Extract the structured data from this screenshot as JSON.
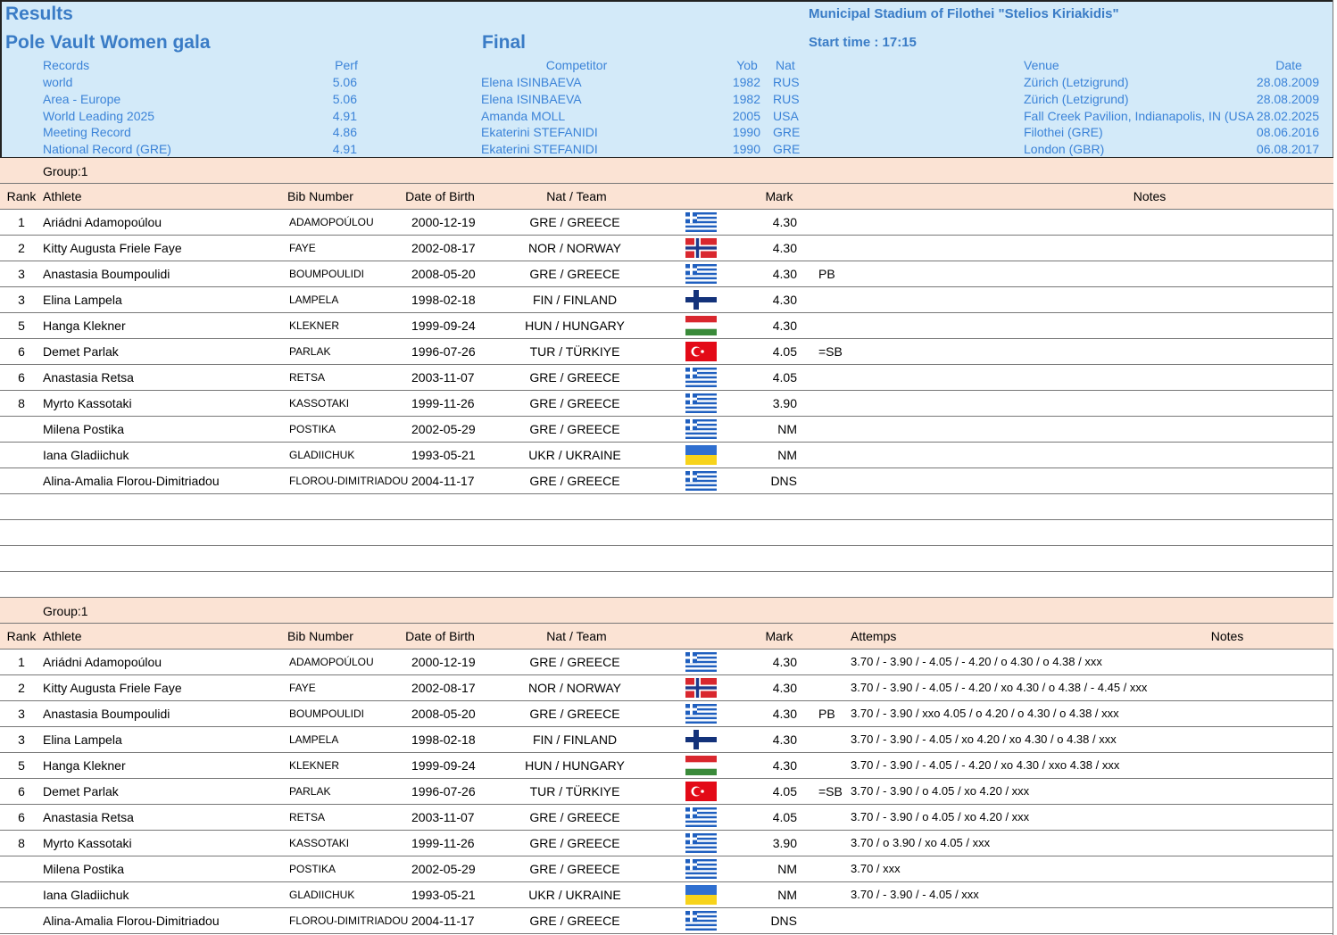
{
  "header": {
    "title": "Results",
    "event": "Pole Vault Women gala",
    "round": "Final",
    "venue": "Municipal Stadium of Filothei \"Stelios Kiriakidis\"",
    "start_time": "Start time : 17:15"
  },
  "records": {
    "columns": [
      "Records",
      "Perf",
      "Competitor",
      "Yob",
      "Nat",
      "Venue",
      "Date"
    ],
    "rows": [
      [
        "world",
        "5.06",
        "Elena ISINBAEVA",
        "1982",
        "RUS",
        "Zürich (Letzigrund)",
        "28.08.2009"
      ],
      [
        "Area - Europe",
        "5.06",
        "Elena ISINBAEVA",
        "1982",
        "RUS",
        "Zürich (Letzigrund)",
        "28.08.2009"
      ],
      [
        "World Leading 2025",
        "4.91",
        "Amanda MOLL",
        "2005",
        "USA",
        "Fall Creek Pavilion, Indianapolis, IN (USA",
        "28.02.2025"
      ],
      [
        "Meeting Record",
        "4.86",
        "Ekaterini STEFANIDI",
        "1990",
        "GRE",
        "Filothei (GRE)",
        "08.06.2016"
      ],
      [
        "National Record (GRE)",
        "4.91",
        "Ekaterini STEFANIDI",
        "1990",
        "GRE",
        "London (GBR)",
        "06.08.2017"
      ]
    ]
  },
  "sections": [
    {
      "group": "Group:1",
      "columns": [
        "Rank",
        "Athlete",
        "Bib Number",
        "Date of Birth",
        "Nat / Team",
        "Mark",
        "Notes"
      ],
      "rows": [
        [
          "1",
          "Ariádni Adamopoúlou",
          "ADAMOPOÚLOU",
          "2000-12-19",
          "GRE / GREECE",
          "4.30",
          null
        ],
        [
          "2",
          "Kitty Augusta Friele Faye",
          "FAYE",
          "2002-08-17",
          "NOR / NORWAY",
          "4.30",
          null
        ],
        [
          "3",
          "Anastasia Boumpoulidi",
          "BOUMPOULIDI",
          "2008-05-20",
          "GRE / GREECE",
          "4.30",
          "PB"
        ],
        [
          "3",
          "Elina Lampela",
          "LAMPELA",
          "1998-02-18",
          "FIN / FINLAND",
          "4.30",
          null
        ],
        [
          "5",
          "Hanga Klekner",
          "KLEKNER",
          "1999-09-24",
          "HUN / HUNGARY",
          "4.30",
          null
        ],
        [
          "6",
          "Demet Parlak",
          "PARLAK",
          "1996-07-26",
          "TUR / TÜRKIYE",
          "4.05",
          "=SB"
        ],
        [
          "6",
          "Anastasia Retsa",
          "RETSA",
          "2003-11-07",
          "GRE / GREECE",
          "4.05",
          null
        ],
        [
          "8",
          "Myrto Kassotaki",
          "KASSOTAKI",
          "1999-11-26",
          "GRE / GREECE",
          "3.90",
          null
        ],
        [
          null,
          "Milena Postika",
          "POSTIKA",
          "2002-05-29",
          "GRE / GREECE",
          "NM",
          null
        ],
        [
          null,
          "Iana Gladiichuk",
          "GLADIICHUK",
          "1993-05-21",
          "UKR / UKRAINE",
          "NM",
          null
        ],
        [
          null,
          "Alina-Amalia Florou-Dimitriadou",
          "FLOROU-DIMITRIADOU",
          "2004-11-17",
          "GRE / GREECE",
          "DNS",
          null
        ]
      ]
    },
    {
      "group": "Group:1",
      "columns": [
        "Rank",
        "Athlete",
        "Bib Number",
        "Date of Birth",
        "Nat / Team",
        "Mark",
        "Attemps",
        "Notes"
      ],
      "rows": [
        [
          "1",
          "Ariádni Adamopoúlou",
          "ADAMOPOÚLOU",
          "2000-12-19",
          "GRE / GREECE",
          "4.30",
          null,
          "3.70 / - 3.90 / - 4.05 / - 4.20 / o 4.30 / o 4.38 / xxx"
        ],
        [
          "2",
          "Kitty Augusta Friele Faye",
          "FAYE",
          "2002-08-17",
          "NOR / NORWAY",
          "4.30",
          null,
          "3.70 / - 3.90 / - 4.05 / - 4.20 / xo 4.30 / o 4.38 / - 4.45 / xxx"
        ],
        [
          "3",
          "Anastasia Boumpoulidi",
          "BOUMPOULIDI",
          "2008-05-20",
          "GRE / GREECE",
          "4.30",
          "PB",
          "3.70 / - 3.90 / xxo 4.05 / o 4.20 / o 4.30 / o 4.38 / xxx"
        ],
        [
          "3",
          "Elina Lampela",
          "LAMPELA",
          "1998-02-18",
          "FIN / FINLAND",
          "4.30",
          null,
          "3.70 / - 3.90 / - 4.05 / xo 4.20 / xo 4.30 / o 4.38 / xxx"
        ],
        [
          "5",
          "Hanga Klekner",
          "KLEKNER",
          "1999-09-24",
          "HUN / HUNGARY",
          "4.30",
          null,
          "3.70 / - 3.90 / - 4.05 / - 4.20 / xo 4.30 / xxo 4.38 / xxx"
        ],
        [
          "6",
          "Demet Parlak",
          "PARLAK",
          "1996-07-26",
          "TUR / TÜRKIYE",
          "4.05",
          "=SB",
          "3.70 / - 3.90 / o 4.05 / xo 4.20 / xxx"
        ],
        [
          "6",
          "Anastasia Retsa",
          "RETSA",
          "2003-11-07",
          "GRE / GREECE",
          "4.05",
          null,
          "3.70 / - 3.90 / o 4.05 / xo 4.20 / xxx"
        ],
        [
          "8",
          "Myrto Kassotaki",
          "KASSOTAKI",
          "1999-11-26",
          "GRE / GREECE",
          "3.90",
          null,
          "3.70 / o 3.90 / xo 4.05 / xxx"
        ],
        [
          null,
          "Milena Postika",
          "POSTIKA",
          "2002-05-29",
          "GRE / GREECE",
          "NM",
          null,
          "3.70 / xxx"
        ],
        [
          null,
          "Iana Gladiichuk",
          "GLADIICHUK",
          "1993-05-21",
          "UKR / UKRAINE",
          "NM",
          null,
          "3.70 / - 3.90 / - 4.05 / xxx"
        ],
        [
          null,
          "Alina-Amalia Florou-Dimitriadou",
          "FLOROU-DIMITRIADOU",
          "2004-11-17",
          "GRE / GREECE",
          "DNS",
          null,
          null
        ]
      ]
    }
  ]
}
